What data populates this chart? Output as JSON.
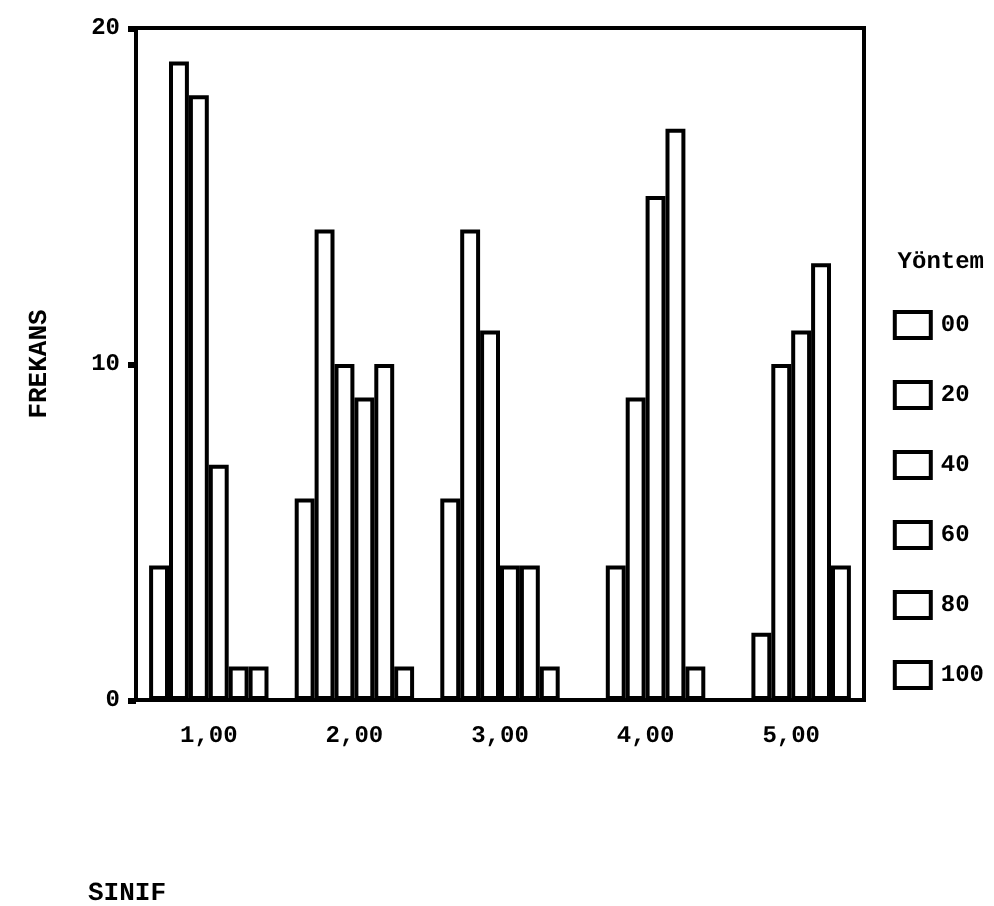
{
  "chart_data": {
    "type": "bar",
    "xlabel": "SINIF",
    "ylabel": "FREKANS",
    "legend_title": "Yöntem",
    "legend": "right",
    "categories": [
      "1,00",
      "2,00",
      "3,00",
      "4,00",
      "5,00"
    ],
    "ylim": [
      0,
      20
    ],
    "yticks": [
      0,
      10,
      20
    ],
    "grid": false,
    "series": [
      {
        "name": "00",
        "color": "#ffffff",
        "values": [
          4,
          6,
          6,
          0,
          0
        ]
      },
      {
        "name": "20",
        "color": "#ffffff",
        "values": [
          19,
          14,
          14,
          4,
          2
        ]
      },
      {
        "name": "40",
        "color": "#ffffff",
        "values": [
          18,
          10,
          11,
          9,
          10
        ]
      },
      {
        "name": "60",
        "color": "#ffffff",
        "values": [
          7,
          9,
          4,
          15,
          11
        ]
      },
      {
        "name": "80",
        "color": "#ffffff",
        "values": [
          1,
          10,
          4,
          17,
          13
        ]
      },
      {
        "name": "100",
        "color": "#ffffff",
        "values": [
          1,
          1,
          1,
          1,
          4
        ]
      }
    ]
  }
}
